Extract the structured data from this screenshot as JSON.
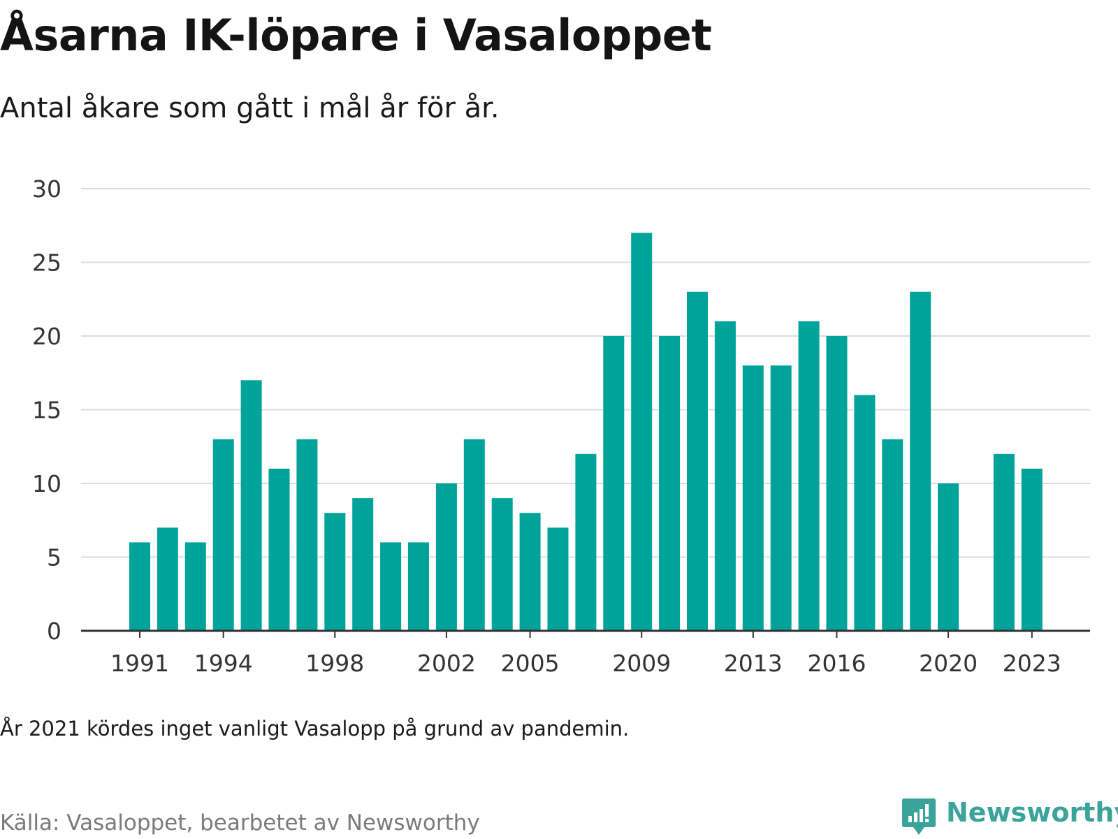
{
  "title": "Åsarna IK-löpare i Vasaloppet",
  "subtitle": "Antal åkare som gått i mål år för år.",
  "note": "År 2021 kördes inget vanligt Vasalopp på grund av pandemin.",
  "source": "Källa: Vasaloppet, bearbetet av Newsworthy",
  "logo": {
    "text": "Newsworthy",
    "icon": "newsworthy-chart-bubble-icon",
    "color": "#3aa39a"
  },
  "chart_data": {
    "type": "bar",
    "bar_color": "#00a39a",
    "grid": true,
    "ylim": [
      0,
      30
    ],
    "yticks": [
      "0",
      "5",
      "10",
      "15",
      "20",
      "25",
      "30"
    ],
    "xticks": [
      "1991",
      "1994",
      "1998",
      "2002",
      "2005",
      "2009",
      "2013",
      "2016",
      "2020",
      "2023"
    ],
    "x": [
      1991,
      1992,
      1993,
      1994,
      1995,
      1996,
      1997,
      1998,
      1999,
      2000,
      2001,
      2002,
      2003,
      2004,
      2005,
      2006,
      2007,
      2008,
      2009,
      2010,
      2011,
      2012,
      2013,
      2014,
      2015,
      2016,
      2017,
      2018,
      2019,
      2020,
      2021,
      2022,
      2023
    ],
    "values": [
      6,
      7,
      6,
      13,
      17,
      11,
      13,
      8,
      9,
      6,
      6,
      10,
      13,
      9,
      8,
      7,
      12,
      20,
      27,
      20,
      23,
      21,
      18,
      18,
      21,
      20,
      16,
      13,
      23,
      10,
      null,
      12,
      11
    ]
  }
}
